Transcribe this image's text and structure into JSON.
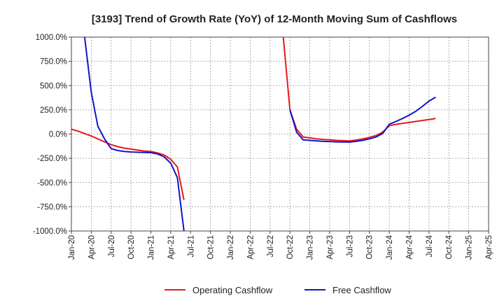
{
  "chart_data": {
    "type": "line",
    "title": "[3193]  Trend of Growth Rate (YoY) of 12-Month Moving Sum of Cashflows",
    "xlabel": "",
    "ylabel": "",
    "x_ticks": [
      "Jan-20",
      "Apr-20",
      "Jul-20",
      "Oct-20",
      "Jan-21",
      "Apr-21",
      "Jul-21",
      "Oct-21",
      "Jan-22",
      "Apr-22",
      "Jul-22",
      "Oct-22",
      "Jan-23",
      "Apr-23",
      "Jul-23",
      "Oct-23",
      "Jan-24",
      "Apr-24",
      "Jul-24",
      "Oct-24",
      "Jan-25",
      "Apr-25"
    ],
    "y_ticks": [
      "1000.0%",
      "750.0%",
      "500.0%",
      "250.0%",
      "0.0%",
      "-250.0%",
      "-500.0%",
      "-750.0%",
      "-1000.0%"
    ],
    "y_tick_values": [
      1000,
      750,
      500,
      250,
      0,
      -250,
      -500,
      -750,
      -1000
    ],
    "ylim": [
      -1000,
      1000
    ],
    "grid": true,
    "legend_position": "bottom-center",
    "series": [
      {
        "name": "Operating Cashflow",
        "color": "#e8191b",
        "points": [
          [
            "2020-01",
            50
          ],
          [
            "2020-02",
            30
          ],
          [
            "2020-03",
            5
          ],
          [
            "2020-04",
            -20
          ],
          [
            "2020-05",
            -50
          ],
          [
            "2020-06",
            -80
          ],
          [
            "2020-07",
            -110
          ],
          [
            "2020-08",
            -130
          ],
          [
            "2020-09",
            -145
          ],
          [
            "2020-10",
            -155
          ],
          [
            "2020-11",
            -165
          ],
          [
            "2020-12",
            -175
          ],
          [
            "2021-01",
            -180
          ],
          [
            "2021-02",
            -195
          ],
          [
            "2021-03",
            -215
          ],
          [
            "2021-04",
            -260
          ],
          [
            "2021-05",
            -340
          ],
          [
            "2021-06",
            -680
          ]
        ],
        "points_2": [
          [
            "2022-09",
            1000
          ],
          [
            "2022-10",
            250
          ],
          [
            "2022-11",
            50
          ],
          [
            "2022-12",
            -30
          ],
          [
            "2023-01",
            -40
          ],
          [
            "2023-02",
            -50
          ],
          [
            "2023-03",
            -55
          ],
          [
            "2023-04",
            -60
          ],
          [
            "2023-05",
            -65
          ],
          [
            "2023-06",
            -68
          ],
          [
            "2023-07",
            -70
          ],
          [
            "2023-08",
            -62
          ],
          [
            "2023-09",
            -50
          ],
          [
            "2023-10",
            -35
          ],
          [
            "2023-11",
            -15
          ],
          [
            "2023-12",
            20
          ],
          [
            "2024-01",
            85
          ],
          [
            "2024-02",
            100
          ],
          [
            "2024-03",
            110
          ],
          [
            "2024-04",
            120
          ],
          [
            "2024-05",
            130
          ],
          [
            "2024-06",
            140
          ],
          [
            "2024-07",
            150
          ],
          [
            "2024-08",
            160
          ]
        ]
      },
      {
        "name": "Free Cashflow",
        "color": "#1414c8",
        "points": [
          [
            "2020-03",
            1000
          ],
          [
            "2020-04",
            430
          ],
          [
            "2020-05",
            80
          ],
          [
            "2020-06",
            -50
          ],
          [
            "2020-07",
            -150
          ],
          [
            "2020-08",
            -170
          ],
          [
            "2020-09",
            -180
          ],
          [
            "2020-10",
            -185
          ],
          [
            "2020-11",
            -188
          ],
          [
            "2020-12",
            -190
          ],
          [
            "2021-01",
            -192
          ],
          [
            "2021-02",
            -205
          ],
          [
            "2021-03",
            -235
          ],
          [
            "2021-04",
            -300
          ],
          [
            "2021-05",
            -450
          ],
          [
            "2021-06",
            -1000
          ]
        ],
        "points_2": [
          [
            "2022-10",
            250
          ],
          [
            "2022-11",
            20
          ],
          [
            "2022-12",
            -60
          ],
          [
            "2023-01",
            -65
          ],
          [
            "2023-02",
            -70
          ],
          [
            "2023-03",
            -75
          ],
          [
            "2023-04",
            -78
          ],
          [
            "2023-05",
            -80
          ],
          [
            "2023-06",
            -82
          ],
          [
            "2023-07",
            -83
          ],
          [
            "2023-08",
            -75
          ],
          [
            "2023-09",
            -65
          ],
          [
            "2023-10",
            -50
          ],
          [
            "2023-11",
            -30
          ],
          [
            "2023-12",
            5
          ],
          [
            "2024-01",
            100
          ],
          [
            "2024-02",
            130
          ],
          [
            "2024-03",
            160
          ],
          [
            "2024-04",
            195
          ],
          [
            "2024-05",
            235
          ],
          [
            "2024-06",
            285
          ],
          [
            "2024-07",
            340
          ],
          [
            "2024-08",
            380
          ]
        ]
      }
    ]
  }
}
